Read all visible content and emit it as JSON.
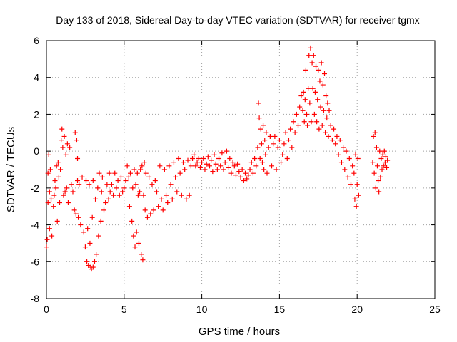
{
  "chart_data": {
    "type": "scatter",
    "title": "Day 133 of 2018, Sidereal Day-to-day VTEC variation (SDTVAR) for receiver tgmx",
    "xlabel": "GPS time / hours",
    "ylabel": "SDTVAR / TECUs",
    "xlim": [
      0,
      25
    ],
    "ylim": [
      -8,
      6
    ],
    "x_ticks": [
      0,
      5,
      10,
      15,
      20,
      25
    ],
    "y_ticks": [
      -8,
      -6,
      -4,
      -2,
      0,
      2,
      4,
      6
    ],
    "grid": true,
    "marker": "+",
    "color": "#ff0000",
    "series": [
      {
        "name": "SDTVAR",
        "points": [
          [
            0.0,
            -5.2
          ],
          [
            0.05,
            -4.8
          ],
          [
            0.1,
            -1.2
          ],
          [
            0.1,
            -2.8
          ],
          [
            0.15,
            -0.2
          ],
          [
            0.2,
            -2.2
          ],
          [
            0.2,
            -4.2
          ],
          [
            0.25,
            -1.0
          ],
          [
            0.3,
            -2.6
          ],
          [
            0.35,
            -4.6
          ],
          [
            0.45,
            -3.0
          ],
          [
            0.5,
            -2.4
          ],
          [
            0.55,
            -1.6
          ],
          [
            0.6,
            -2.0
          ],
          [
            0.65,
            -0.8
          ],
          [
            0.7,
            -3.8
          ],
          [
            0.75,
            -0.6
          ],
          [
            0.8,
            -1.4
          ],
          [
            0.85,
            -2.8
          ],
          [
            0.9,
            -1.0
          ],
          [
            0.95,
            0.6
          ],
          [
            1.0,
            1.2
          ],
          [
            1.05,
            0.2
          ],
          [
            1.1,
            -2.4
          ],
          [
            1.15,
            0.8
          ],
          [
            1.2,
            -2.2
          ],
          [
            1.25,
            -0.2
          ],
          [
            1.3,
            -2.0
          ],
          [
            1.35,
            0.4
          ],
          [
            1.4,
            -2.8
          ],
          [
            1.5,
            0.2
          ],
          [
            1.6,
            -1.8
          ],
          [
            1.7,
            -2.2
          ],
          [
            1.8,
            -3.2
          ],
          [
            1.85,
            1.0
          ],
          [
            1.9,
            -3.4
          ],
          [
            1.95,
            0.6
          ],
          [
            2.0,
            -0.4
          ],
          [
            2.0,
            -1.6
          ],
          [
            2.05,
            -3.6
          ],
          [
            2.1,
            -1.8
          ],
          [
            2.2,
            -4.0
          ],
          [
            2.3,
            -1.4
          ],
          [
            2.4,
            -4.4
          ],
          [
            2.5,
            -5.2
          ],
          [
            2.55,
            -1.6
          ],
          [
            2.6,
            -6.0
          ],
          [
            2.65,
            -4.2
          ],
          [
            2.7,
            -6.2
          ],
          [
            2.75,
            -1.8
          ],
          [
            2.8,
            -5.0
          ],
          [
            2.85,
            -6.3
          ],
          [
            2.9,
            -6.4
          ],
          [
            2.95,
            -3.6
          ],
          [
            3.0,
            -1.6
          ],
          [
            3.0,
            -6.3
          ],
          [
            3.1,
            -6.0
          ],
          [
            3.15,
            -2.6
          ],
          [
            3.2,
            -5.6
          ],
          [
            3.3,
            -2.0
          ],
          [
            3.35,
            -4.6
          ],
          [
            3.4,
            -1.2
          ],
          [
            3.5,
            -3.8
          ],
          [
            3.55,
            -2.2
          ],
          [
            3.6,
            -1.4
          ],
          [
            3.7,
            -3.2
          ],
          [
            3.8,
            -2.8
          ],
          [
            3.9,
            -1.8
          ],
          [
            4.0,
            -2.6
          ],
          [
            4.05,
            -1.2
          ],
          [
            4.1,
            -2.2
          ],
          [
            4.2,
            -1.8
          ],
          [
            4.3,
            -2.4
          ],
          [
            4.4,
            -1.2
          ],
          [
            4.5,
            -2.0
          ],
          [
            4.6,
            -1.6
          ],
          [
            4.7,
            -2.4
          ],
          [
            4.8,
            -1.4
          ],
          [
            4.9,
            -2.2
          ],
          [
            5.0,
            -2.0
          ],
          [
            5.1,
            -1.6
          ],
          [
            5.2,
            -0.8
          ],
          [
            5.3,
            -1.4
          ],
          [
            5.35,
            -3.0
          ],
          [
            5.4,
            -1.2
          ],
          [
            5.5,
            -3.8
          ],
          [
            5.55,
            -2.0
          ],
          [
            5.6,
            -4.6
          ],
          [
            5.65,
            -1.0
          ],
          [
            5.7,
            -5.2
          ],
          [
            5.75,
            -1.8
          ],
          [
            5.8,
            -4.4
          ],
          [
            5.85,
            -1.2
          ],
          [
            5.9,
            -2.4
          ],
          [
            5.95,
            -5.0
          ],
          [
            6.0,
            -2.2
          ],
          [
            6.05,
            -1.0
          ],
          [
            6.1,
            -5.6
          ],
          [
            6.15,
            -0.8
          ],
          [
            6.2,
            -5.9
          ],
          [
            6.25,
            -2.4
          ],
          [
            6.3,
            -0.6
          ],
          [
            6.35,
            -3.2
          ],
          [
            6.4,
            -1.2
          ],
          [
            6.5,
            -3.6
          ],
          [
            6.6,
            -1.4
          ],
          [
            6.7,
            -3.4
          ],
          [
            6.8,
            -1.8
          ],
          [
            6.9,
            -3.2
          ],
          [
            7.0,
            -1.6
          ],
          [
            7.1,
            -2.2
          ],
          [
            7.2,
            -3.0
          ],
          [
            7.3,
            -0.8
          ],
          [
            7.4,
            -2.6
          ],
          [
            7.5,
            -3.2
          ],
          [
            7.6,
            -1.0
          ],
          [
            7.7,
            -2.4
          ],
          [
            7.8,
            -2.8
          ],
          [
            7.9,
            -0.8
          ],
          [
            8.0,
            -1.8
          ],
          [
            8.1,
            -2.6
          ],
          [
            8.2,
            -0.6
          ],
          [
            8.3,
            -1.4
          ],
          [
            8.4,
            -2.2
          ],
          [
            8.5,
            -0.4
          ],
          [
            8.6,
            -1.2
          ],
          [
            8.7,
            -2.4
          ],
          [
            8.8,
            -0.6
          ],
          [
            8.9,
            -1.0
          ],
          [
            9.0,
            -2.6
          ],
          [
            9.1,
            -0.5
          ],
          [
            9.2,
            -2.4
          ],
          [
            9.3,
            -0.8
          ],
          [
            9.4,
            -0.4
          ],
          [
            9.5,
            -0.2
          ],
          [
            9.6,
            -0.8
          ],
          [
            9.7,
            -0.6
          ],
          [
            9.8,
            -0.4
          ],
          [
            9.9,
            -0.9
          ],
          [
            10.0,
            -0.6
          ],
          [
            10.1,
            -0.4
          ],
          [
            10.2,
            -1.0
          ],
          [
            10.3,
            -0.7
          ],
          [
            10.4,
            -0.3
          ],
          [
            10.5,
            -0.8
          ],
          [
            10.6,
            -0.5
          ],
          [
            10.7,
            -1.1
          ],
          [
            10.8,
            -0.2
          ],
          [
            10.9,
            -0.7
          ],
          [
            11.0,
            -1.0
          ],
          [
            11.1,
            -0.4
          ],
          [
            11.2,
            -0.8
          ],
          [
            11.3,
            -0.1
          ],
          [
            11.4,
            -1.0
          ],
          [
            11.5,
            -0.6
          ],
          [
            11.6,
            0.0
          ],
          [
            11.7,
            -0.9
          ],
          [
            11.8,
            -0.4
          ],
          [
            11.9,
            -1.2
          ],
          [
            12.0,
            -0.6
          ],
          [
            12.1,
            -0.8
          ],
          [
            12.2,
            -1.3
          ],
          [
            12.3,
            -0.7
          ],
          [
            12.4,
            -1.1
          ],
          [
            12.5,
            -1.4
          ],
          [
            12.6,
            -1.0
          ],
          [
            12.7,
            -1.6
          ],
          [
            12.8,
            -1.2
          ],
          [
            12.9,
            -1.5
          ],
          [
            13.0,
            -1.3
          ],
          [
            13.1,
            -1.0
          ],
          [
            13.2,
            -0.6
          ],
          [
            13.3,
            -1.2
          ],
          [
            13.4,
            -0.4
          ],
          [
            13.5,
            -0.8
          ],
          [
            13.6,
            0.2
          ],
          [
            13.65,
            2.6
          ],
          [
            13.7,
            1.8
          ],
          [
            13.75,
            -0.4
          ],
          [
            13.8,
            1.2
          ],
          [
            13.85,
            0.4
          ],
          [
            13.9,
            -0.6
          ],
          [
            13.95,
            1.4
          ],
          [
            14.0,
            -1.0
          ],
          [
            14.05,
            0.6
          ],
          [
            14.1,
            -0.2
          ],
          [
            14.15,
            1.0
          ],
          [
            14.2,
            -1.2
          ],
          [
            14.3,
            0.2
          ],
          [
            14.4,
            0.8
          ],
          [
            14.5,
            -0.8
          ],
          [
            14.6,
            0.4
          ],
          [
            14.7,
            0.8
          ],
          [
            14.8,
            -1.0
          ],
          [
            14.9,
            0.2
          ],
          [
            15.0,
            0.6
          ],
          [
            15.1,
            -0.6
          ],
          [
            15.2,
            -0.2
          ],
          [
            15.3,
            0.4
          ],
          [
            15.4,
            1.0
          ],
          [
            15.5,
            -0.4
          ],
          [
            15.6,
            0.6
          ],
          [
            15.7,
            1.2
          ],
          [
            15.8,
            0.2
          ],
          [
            15.9,
            1.6
          ],
          [
            16.0,
            1.0
          ],
          [
            16.1,
            2.0
          ],
          [
            16.2,
            1.4
          ],
          [
            16.3,
            2.4
          ],
          [
            16.4,
            3.0
          ],
          [
            16.5,
            2.2
          ],
          [
            16.55,
            3.2
          ],
          [
            16.6,
            1.6
          ],
          [
            16.65,
            2.8
          ],
          [
            16.7,
            4.4
          ],
          [
            16.75,
            2.0
          ],
          [
            16.8,
            1.4
          ],
          [
            16.85,
            3.4
          ],
          [
            16.9,
            5.2
          ],
          [
            16.95,
            2.6
          ],
          [
            17.0,
            5.6
          ],
          [
            17.05,
            1.6
          ],
          [
            17.1,
            4.8
          ],
          [
            17.15,
            3.4
          ],
          [
            17.2,
            5.2
          ],
          [
            17.25,
            2.0
          ],
          [
            17.3,
            3.2
          ],
          [
            17.35,
            4.6
          ],
          [
            17.4,
            1.6
          ],
          [
            17.45,
            2.8
          ],
          [
            17.5,
            4.4
          ],
          [
            17.55,
            1.2
          ],
          [
            17.6,
            3.8
          ],
          [
            17.65,
            2.4
          ],
          [
            17.7,
            4.8
          ],
          [
            17.75,
            1.4
          ],
          [
            17.8,
            3.6
          ],
          [
            17.85,
            2.2
          ],
          [
            17.9,
            4.2
          ],
          [
            17.95,
            1.0
          ],
          [
            18.0,
            3.0
          ],
          [
            18.05,
            1.8
          ],
          [
            18.1,
            2.6
          ],
          [
            18.15,
            0.8
          ],
          [
            18.2,
            2.2
          ],
          [
            18.3,
            1.4
          ],
          [
            18.4,
            0.6
          ],
          [
            18.5,
            1.2
          ],
          [
            18.6,
            0.4
          ],
          [
            18.7,
            0.8
          ],
          [
            18.8,
            -0.2
          ],
          [
            18.9,
            0.6
          ],
          [
            19.0,
            -0.6
          ],
          [
            19.1,
            0.2
          ],
          [
            19.2,
            -1.0
          ],
          [
            19.3,
            0.0
          ],
          [
            19.4,
            -1.4
          ],
          [
            19.5,
            -0.4
          ],
          [
            19.6,
            -1.8
          ],
          [
            19.7,
            -0.8
          ],
          [
            19.8,
            -1.2
          ],
          [
            19.85,
            -2.6
          ],
          [
            19.9,
            -0.2
          ],
          [
            19.95,
            -3.0
          ],
          [
            20.0,
            -1.8
          ],
          [
            20.05,
            -0.4
          ],
          [
            20.1,
            -2.4
          ],
          [
            21.0,
            -0.6
          ],
          [
            21.05,
            0.8
          ],
          [
            21.1,
            -1.2
          ],
          [
            21.15,
            1.0
          ],
          [
            21.2,
            -2.0
          ],
          [
            21.25,
            0.2
          ],
          [
            21.3,
            -0.8
          ],
          [
            21.35,
            -1.6
          ],
          [
            21.4,
            -2.2
          ],
          [
            21.45,
            0.0
          ],
          [
            21.5,
            -1.4
          ],
          [
            21.55,
            -0.4
          ],
          [
            21.6,
            -1.0
          ],
          [
            21.65,
            -0.2
          ],
          [
            21.7,
            -0.8
          ],
          [
            21.75,
            0.0
          ],
          [
            21.8,
            -0.6
          ],
          [
            21.85,
            -0.3
          ],
          [
            21.9,
            -0.9
          ],
          [
            21.95,
            -0.5
          ]
        ]
      }
    ]
  }
}
